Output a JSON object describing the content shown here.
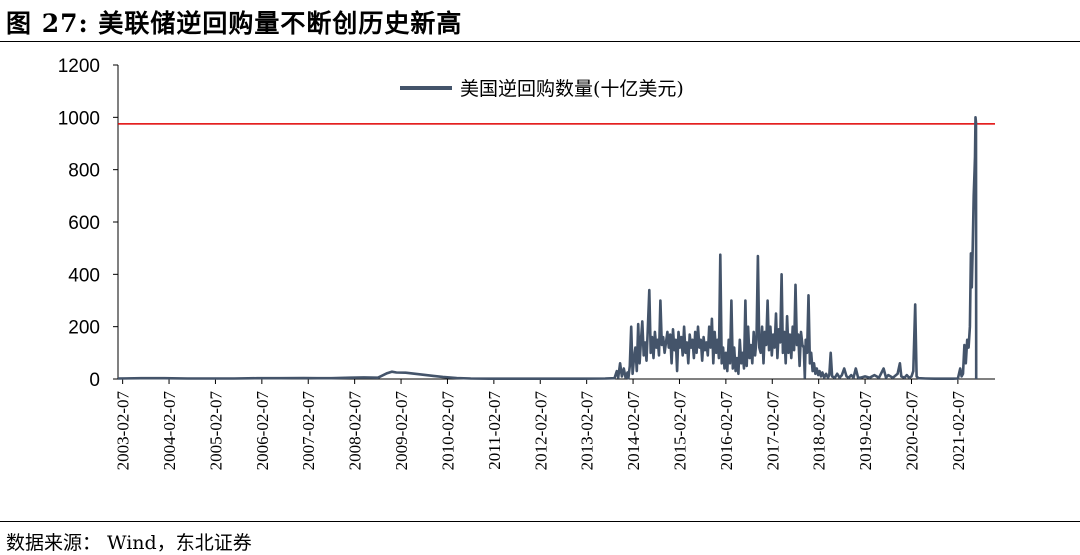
{
  "figure": {
    "title": "图  27:  美联储逆回购量不断创历史新高",
    "source": "数据来源：  Wind，东北证券"
  },
  "chart_data": {
    "type": "line",
    "title": "",
    "xlabel": "",
    "ylabel": "",
    "ylim": [
      0,
      1200
    ],
    "yticks": [
      0,
      200,
      400,
      600,
      800,
      1000,
      1200
    ],
    "xticks": [
      "2003-02-07",
      "2004-02-07",
      "2005-02-07",
      "2006-02-07",
      "2007-02-07",
      "2008-02-07",
      "2009-02-07",
      "2010-02-07",
      "2011-02-07",
      "2012-02-07",
      "2013-02-07",
      "2014-02-07",
      "2015-02-07",
      "2016-02-07",
      "2017-02-07",
      "2018-02-07",
      "2019-02-07",
      "2020-02-07",
      "2021-02-07"
    ],
    "legend_position": "top-center",
    "series": [
      {
        "name": "美国逆回购数量(十亿美元)",
        "color": "#44546A",
        "points": [
          [
            2003.0,
            2
          ],
          [
            2003.5,
            3
          ],
          [
            2004.0,
            3
          ],
          [
            2004.5,
            2
          ],
          [
            2005.0,
            2
          ],
          [
            2005.5,
            2
          ],
          [
            2006.0,
            3
          ],
          [
            2006.5,
            3
          ],
          [
            2007.0,
            4
          ],
          [
            2007.3,
            3
          ],
          [
            2007.6,
            3
          ],
          [
            2008.0,
            5
          ],
          [
            2008.3,
            6
          ],
          [
            2008.6,
            5
          ],
          [
            2008.8,
            22
          ],
          [
            2008.9,
            28
          ],
          [
            2009.0,
            25
          ],
          [
            2009.2,
            24
          ],
          [
            2009.5,
            18
          ],
          [
            2009.8,
            12
          ],
          [
            2010.0,
            8
          ],
          [
            2010.3,
            4
          ],
          [
            2010.6,
            2
          ],
          [
            2011.0,
            1
          ],
          [
            2011.5,
            1
          ],
          [
            2012.0,
            1
          ],
          [
            2012.5,
            1
          ],
          [
            2013.0,
            1
          ],
          [
            2013.5,
            2
          ],
          [
            2013.7,
            3
          ],
          [
            2013.75,
            30
          ],
          [
            2013.78,
            5
          ],
          [
            2013.82,
            60
          ],
          [
            2013.86,
            10
          ],
          [
            2013.9,
            40
          ],
          [
            2013.94,
            5
          ],
          [
            2013.98,
            25
          ],
          [
            2014.0,
            3
          ],
          [
            2014.03,
            50
          ],
          [
            2014.06,
            200
          ],
          [
            2014.09,
            20
          ],
          [
            2014.12,
            80
          ],
          [
            2014.15,
            120
          ],
          [
            2014.18,
            30
          ],
          [
            2014.21,
            210
          ],
          [
            2014.24,
            60
          ],
          [
            2014.27,
            150
          ],
          [
            2014.3,
            220
          ],
          [
            2014.33,
            90
          ],
          [
            2014.36,
            140
          ],
          [
            2014.39,
            70
          ],
          [
            2014.42,
            200
          ],
          [
            2014.45,
            340
          ],
          [
            2014.48,
            100
          ],
          [
            2014.51,
            160
          ],
          [
            2014.54,
            80
          ],
          [
            2014.57,
            180
          ],
          [
            2014.6,
            120
          ],
          [
            2014.63,
            150
          ],
          [
            2014.66,
            90
          ],
          [
            2014.69,
            300
          ],
          [
            2014.72,
            130
          ],
          [
            2014.75,
            160
          ],
          [
            2014.78,
            100
          ],
          [
            2014.81,
            140
          ],
          [
            2014.84,
            180
          ],
          [
            2014.87,
            120
          ],
          [
            2014.9,
            170
          ],
          [
            2014.93,
            60
          ],
          [
            2014.96,
            190
          ],
          [
            2014.99,
            110
          ],
          [
            2015.02,
            150
          ],
          [
            2015.05,
            30
          ],
          [
            2015.08,
            180
          ],
          [
            2015.11,
            120
          ],
          [
            2015.14,
            160
          ],
          [
            2015.17,
            90
          ],
          [
            2015.2,
            200
          ],
          [
            2015.23,
            100
          ],
          [
            2015.26,
            140
          ],
          [
            2015.29,
            60
          ],
          [
            2015.32,
            170
          ],
          [
            2015.35,
            120
          ],
          [
            2015.38,
            150
          ],
          [
            2015.41,
            80
          ],
          [
            2015.44,
            180
          ],
          [
            2015.47,
            100
          ],
          [
            2015.5,
            200
          ],
          [
            2015.53,
            120
          ],
          [
            2015.56,
            150
          ],
          [
            2015.59,
            70
          ],
          [
            2015.62,
            160
          ],
          [
            2015.65,
            110
          ],
          [
            2015.68,
            140
          ],
          [
            2015.71,
            90
          ],
          [
            2015.74,
            200
          ],
          [
            2015.77,
            120
          ],
          [
            2015.8,
            230
          ],
          [
            2015.83,
            60
          ],
          [
            2015.86,
            180
          ],
          [
            2015.89,
            100
          ],
          [
            2015.92,
            150
          ],
          [
            2015.95,
            80
          ],
          [
            2015.98,
            475
          ],
          [
            2016.01,
            60
          ],
          [
            2016.04,
            120
          ],
          [
            2016.07,
            40
          ],
          [
            2016.1,
            100
          ],
          [
            2016.13,
            30
          ],
          [
            2016.16,
            150
          ],
          [
            2016.19,
            60
          ],
          [
            2016.22,
            300
          ],
          [
            2016.25,
            40
          ],
          [
            2016.28,
            120
          ],
          [
            2016.31,
            30
          ],
          [
            2016.34,
            80
          ],
          [
            2016.37,
            20
          ],
          [
            2016.4,
            150
          ],
          [
            2016.43,
            60
          ],
          [
            2016.46,
            100
          ],
          [
            2016.49,
            40
          ],
          [
            2016.52,
            300
          ],
          [
            2016.55,
            50
          ],
          [
            2016.58,
            200
          ],
          [
            2016.61,
            80
          ],
          [
            2016.64,
            130
          ],
          [
            2016.67,
            60
          ],
          [
            2016.7,
            180
          ],
          [
            2016.73,
            90
          ],
          [
            2016.76,
            150
          ],
          [
            2016.79,
            470
          ],
          [
            2016.82,
            120
          ],
          [
            2016.85,
            100
          ],
          [
            2016.88,
            200
          ],
          [
            2016.91,
            60
          ],
          [
            2016.94,
            180
          ],
          [
            2016.97,
            130
          ],
          [
            2017.0,
            300
          ],
          [
            2017.03,
            110
          ],
          [
            2017.06,
            200
          ],
          [
            2017.09,
            90
          ],
          [
            2017.12,
            170
          ],
          [
            2017.15,
            120
          ],
          [
            2017.18,
            250
          ],
          [
            2017.21,
            80
          ],
          [
            2017.24,
            190
          ],
          [
            2017.27,
            140
          ],
          [
            2017.3,
            400
          ],
          [
            2017.33,
            100
          ],
          [
            2017.36,
            180
          ],
          [
            2017.39,
            60
          ],
          [
            2017.42,
            240
          ],
          [
            2017.45,
            100
          ],
          [
            2017.48,
            170
          ],
          [
            2017.51,
            80
          ],
          [
            2017.54,
            200
          ],
          [
            2017.57,
            110
          ],
          [
            2017.6,
            360
          ],
          [
            2017.63,
            130
          ],
          [
            2017.66,
            170
          ],
          [
            2017.69,
            50
          ],
          [
            2017.72,
            180
          ],
          [
            2017.75,
            130
          ],
          [
            2017.78,
            120
          ],
          [
            2017.8,
            5
          ],
          [
            2017.82,
            150
          ],
          [
            2017.85,
            100
          ],
          [
            2017.88,
            320
          ],
          [
            2017.91,
            60
          ],
          [
            2017.94,
            100
          ],
          [
            2017.97,
            30
          ],
          [
            2018.0,
            60
          ],
          [
            2018.03,
            20
          ],
          [
            2018.06,
            40
          ],
          [
            2018.09,
            15
          ],
          [
            2018.12,
            30
          ],
          [
            2018.15,
            10
          ],
          [
            2018.18,
            25
          ],
          [
            2018.22,
            5
          ],
          [
            2018.26,
            20
          ],
          [
            2018.3,
            5
          ],
          [
            2018.33,
            15
          ],
          [
            2018.36,
            100
          ],
          [
            2018.39,
            10
          ],
          [
            2018.45,
            5
          ],
          [
            2018.5,
            20
          ],
          [
            2018.55,
            5
          ],
          [
            2018.6,
            15
          ],
          [
            2018.65,
            40
          ],
          [
            2018.7,
            10
          ],
          [
            2018.75,
            5
          ],
          [
            2018.8,
            15
          ],
          [
            2018.85,
            5
          ],
          [
            2018.9,
            40
          ],
          [
            2018.95,
            5
          ],
          [
            2019.0,
            5
          ],
          [
            2019.1,
            10
          ],
          [
            2019.2,
            5
          ],
          [
            2019.3,
            15
          ],
          [
            2019.4,
            5
          ],
          [
            2019.5,
            40
          ],
          [
            2019.55,
            5
          ],
          [
            2019.6,
            15
          ],
          [
            2019.7,
            5
          ],
          [
            2019.8,
            20
          ],
          [
            2019.85,
            60
          ],
          [
            2019.88,
            10
          ],
          [
            2019.95,
            5
          ],
          [
            2020.0,
            15
          ],
          [
            2020.05,
            5
          ],
          [
            2020.1,
            10
          ],
          [
            2020.14,
            30
          ],
          [
            2020.18,
            285
          ],
          [
            2020.21,
            10
          ],
          [
            2020.25,
            3
          ],
          [
            2020.4,
            2
          ],
          [
            2020.6,
            1
          ],
          [
            2020.8,
            1
          ],
          [
            2021.0,
            1
          ],
          [
            2021.1,
            2
          ],
          [
            2021.15,
            40
          ],
          [
            2021.18,
            10
          ],
          [
            2021.21,
            20
          ],
          [
            2021.24,
            130
          ],
          [
            2021.27,
            60
          ],
          [
            2021.3,
            150
          ],
          [
            2021.33,
            120
          ],
          [
            2021.36,
            200
          ],
          [
            2021.38,
            480
          ],
          [
            2021.4,
            350
          ],
          [
            2021.42,
            500
          ],
          [
            2021.44,
            700
          ],
          [
            2021.46,
            800
          ],
          [
            2021.47,
            850
          ],
          [
            2021.48,
            1000
          ],
          [
            2021.49,
            980
          ],
          [
            2021.495,
            0
          ]
        ]
      }
    ],
    "reference_line": {
      "y": 975,
      "color": "#E00000"
    }
  }
}
